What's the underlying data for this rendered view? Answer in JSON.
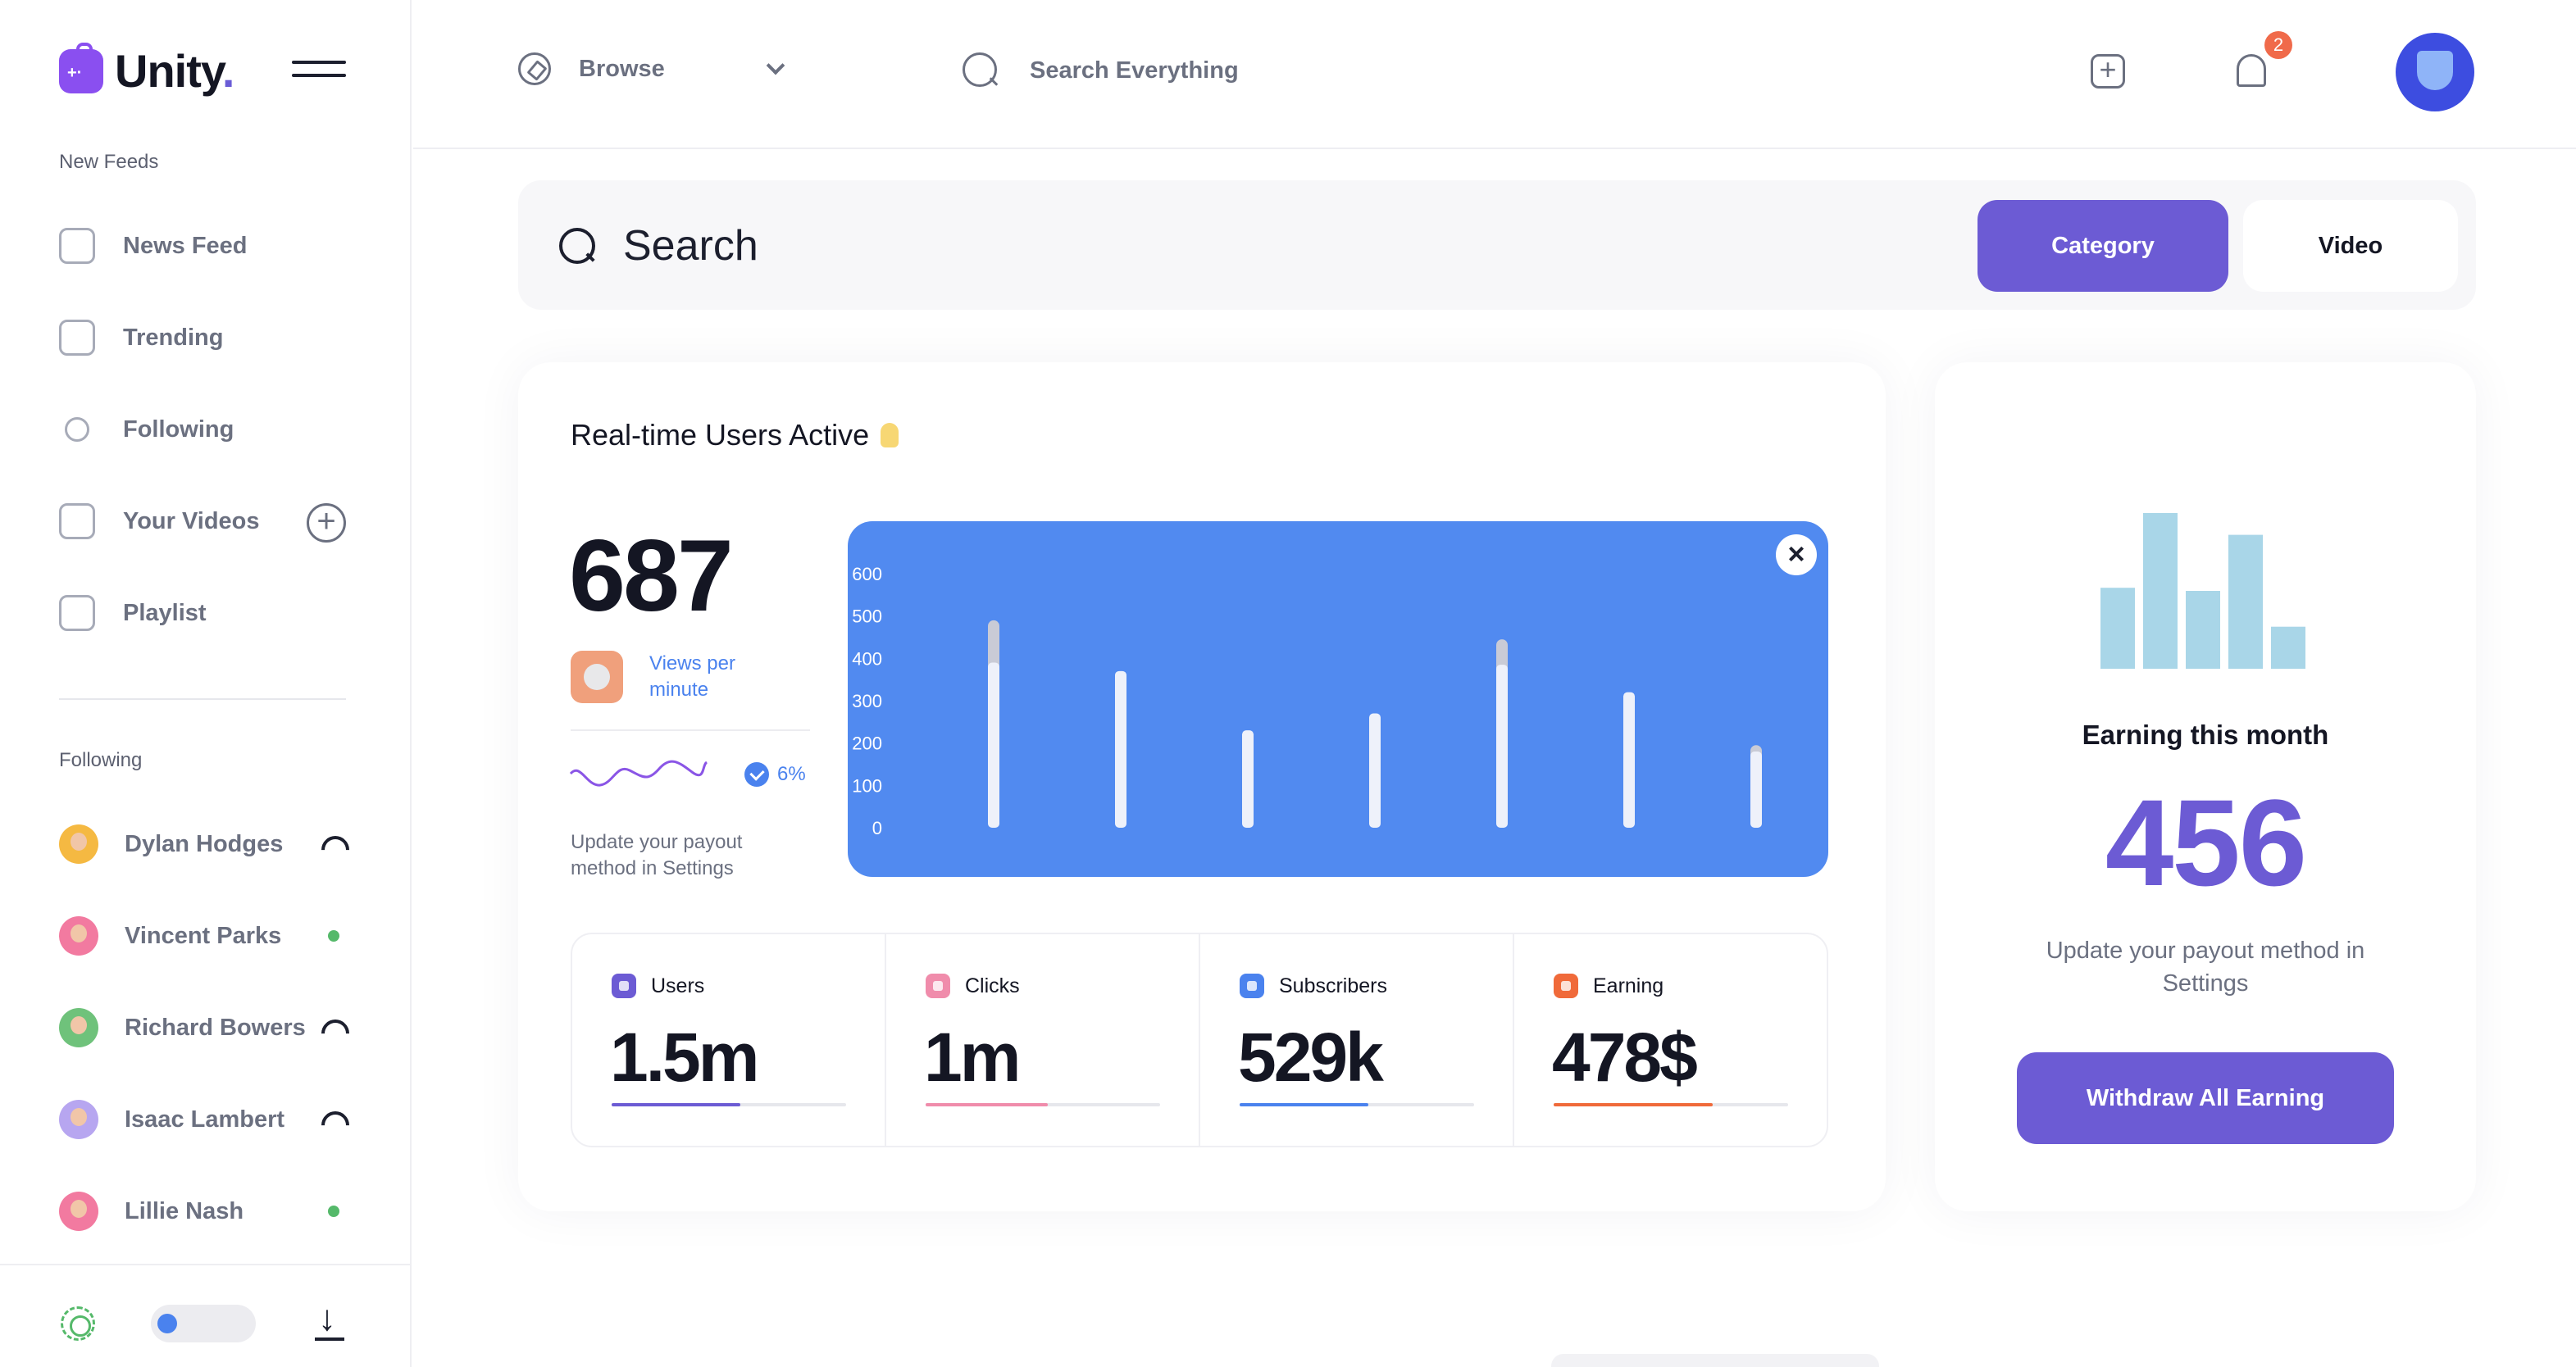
{
  "app": {
    "logo_text": "Unity",
    "logo_dot": "."
  },
  "sidebar": {
    "section_feeds": "New Feeds",
    "items": [
      {
        "label": "News Feed",
        "icon": "gamepad-icon"
      },
      {
        "label": "Trending",
        "icon": "trending-icon"
      },
      {
        "label": "Following",
        "icon": "user-icon"
      },
      {
        "label": "Your Videos",
        "icon": "video-icon"
      },
      {
        "label": "Playlist",
        "icon": "playlist-icon"
      }
    ],
    "section_following": "Following",
    "following": [
      {
        "name": "Dylan Hodges",
        "status": "live",
        "avatar_color": "#f5b942"
      },
      {
        "name": "Vincent Parks",
        "status": "online",
        "avatar_color": "#f27aa0"
      },
      {
        "name": "Richard Bowers",
        "status": "live",
        "avatar_color": "#6fc27b"
      },
      {
        "name": "Isaac Lambert",
        "status": "live",
        "avatar_color": "#b7a6f0"
      },
      {
        "name": "Lillie Nash",
        "status": "online",
        "avatar_color": "#f27aa0"
      }
    ]
  },
  "topbar": {
    "browse_label": "Browse",
    "search_placeholder": "Search Everything",
    "notification_count": "2"
  },
  "search": {
    "label": "Search",
    "category_button": "Category",
    "video_button": "Video"
  },
  "realtime": {
    "title": "Real-time Users Active",
    "value": "687",
    "views_label": "Views per minute",
    "change": "6%",
    "payout_note": "Update your payout method in Settings"
  },
  "chart_data": {
    "type": "bar",
    "y_ticks": [
      "600",
      "500",
      "400",
      "300",
      "200",
      "100",
      "0"
    ],
    "ylim": [
      0,
      600
    ],
    "values": [
      390,
      370,
      230,
      270,
      385,
      320,
      180
    ],
    "highlight_tops": [
      490,
      null,
      null,
      null,
      445,
      null,
      195
    ],
    "grid": false
  },
  "stats": [
    {
      "label": "Users",
      "value": "1.5m",
      "color": "#6c5bd4",
      "progress": 0.55
    },
    {
      "label": "Clicks",
      "value": "1m",
      "color": "#f08cab",
      "progress": 0.52
    },
    {
      "label": "Subscribers",
      "value": "529k",
      "color": "#4a82ee",
      "progress": 0.55
    },
    {
      "label": "Earning",
      "value": "478$",
      "color": "#f06a3a",
      "progress": 0.68
    }
  ],
  "earning": {
    "title": "Earning this month",
    "value": "456",
    "note": "Update your payout method in Settings",
    "button": "Withdraw All Earning",
    "mini_bars": [
      0.52,
      1.0,
      0.5,
      0.86,
      0.27
    ],
    "mini_bar_color": "#a9d6e8"
  },
  "colors": {
    "accent": "#6c5bd4",
    "chart_bg": "#518af0",
    "online": "#55b96a",
    "badge": "#f06a4a"
  }
}
